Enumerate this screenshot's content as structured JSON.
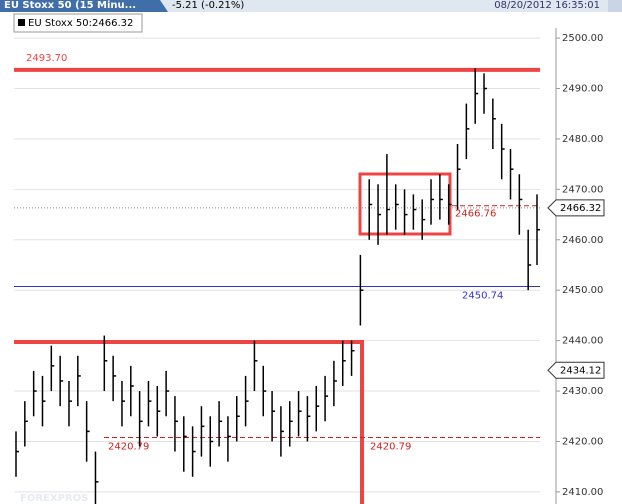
{
  "header": {
    "tab": "EU Stoxx 50 (15 Minu...",
    "change": "-5.21 (-0.21%)",
    "timestamp": "08/20/2012 16:35:01"
  },
  "chart_data": {
    "type": "ohlc",
    "legend": "EU Stoxx 50:2466.32",
    "watermark": "FOREXPROS",
    "color": "#000000",
    "ylim": [
      2407.6,
      2502
    ],
    "yticks": [
      {
        "value": 2410,
        "label": "2410.00"
      },
      {
        "value": 2420,
        "label": "2420.00"
      },
      {
        "value": 2430,
        "label": "2430.00"
      },
      {
        "value": 2440,
        "label": "2440.00"
      },
      {
        "value": 2450,
        "label": "2450.00"
      },
      {
        "value": 2460,
        "label": "2460.00"
      },
      {
        "value": 2470,
        "label": "2470.00"
      },
      {
        "value": 2480,
        "label": "2480.00"
      },
      {
        "value": 2490,
        "label": "2490.00"
      },
      {
        "value": 2500,
        "label": "2500.00"
      }
    ],
    "grid": true,
    "high": [
      2422,
      2428,
      2434,
      2433,
      2439,
      2437,
      2432,
      2437,
      2428,
      2418,
      2441,
      2437,
      2432,
      2435,
      2430,
      2432,
      2431,
      2434,
      2429,
      2425,
      2423,
      2427,
      2425,
      2428,
      2425,
      2429,
      2433,
      2440,
      2435,
      2430,
      2427,
      2428,
      2430,
      2429,
      2431,
      2433,
      2436,
      2440,
      2440,
      2457,
      2472,
      2471,
      2477,
      2471,
      2470,
      2469,
      2468,
      2472,
      2473,
      2471,
      2479,
      2487,
      2494,
      2493,
      2488,
      2483,
      2478,
      2473,
      2462,
      2469
    ],
    "low": [
      2413,
      2419,
      2425,
      2423,
      2430,
      2427,
      2423,
      2427,
      2416,
      2405,
      2430,
      2428,
      2423,
      2425,
      2419,
      2423,
      2421,
      2425,
      2418,
      2414,
      2413,
      2417,
      2415,
      2419,
      2416,
      2420,
      2423,
      2430,
      2425,
      2420,
      2417,
      2419,
      2421,
      2420,
      2422,
      2424,
      2427,
      2431,
      2433,
      2443,
      2460,
      2459,
      2461,
      2462,
      2461,
      2462,
      2460,
      2463,
      2464,
      2463,
      2466,
      2476,
      2483,
      2485,
      2478,
      2472,
      2468,
      2461,
      2450,
      2455
    ],
    "close": [
      2418,
      2424,
      2430,
      2428,
      2435,
      2432,
      2428,
      2433,
      2422,
      2412,
      2436,
      2433,
      2428,
      2431,
      2424,
      2428,
      2426,
      2430,
      2424,
      2421,
      2418,
      2423,
      2420,
      2424,
      2421,
      2425,
      2428,
      2436,
      2430,
      2426,
      2422,
      2424,
      2426,
      2425,
      2427,
      2429,
      2432,
      2436,
      2438,
      2450,
      2467,
      2465,
      2466,
      2467,
      2465,
      2466,
      2464,
      2468,
      2468,
      2467,
      2474,
      2482,
      2489,
      2490,
      2484,
      2478,
      2474,
      2468,
      2455,
      2462
    ],
    "resistance": {
      "value": 2493.7,
      "label": "2493.70",
      "color": "#ee4444"
    },
    "support": {
      "value": 2450.74,
      "label": "2450.74",
      "color": "#3333cc"
    },
    "dashed_level": {
      "value": 2420.79,
      "label": "2420.79",
      "color": "#cc2222"
    },
    "box_level": {
      "value": 2466.76,
      "label": "2466.76",
      "color": "#cc2222"
    },
    "last_price": {
      "value": 2466.32,
      "label": "2466.32"
    },
    "marker_price": {
      "value": 2434.12,
      "label": "2434.12"
    }
  }
}
